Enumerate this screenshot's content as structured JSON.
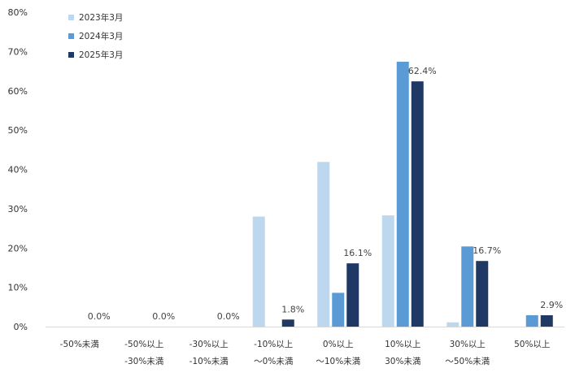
{
  "chart_data": {
    "type": "bar",
    "categories": [
      [
        "-50%未満",
        ""
      ],
      [
        "-50%以上",
        "-30%未満"
      ],
      [
        "-30%以上",
        "-10%未満"
      ],
      [
        "-10%以上",
        "～0%未満"
      ],
      [
        "0%以上",
        "～10%未満"
      ],
      [
        "10%以上",
        "30%未満"
      ],
      [
        "30%以上",
        "～50%未満"
      ],
      [
        "50%以上",
        ""
      ]
    ],
    "series": [
      {
        "name": "2023年3月",
        "color": "#bdd7ee",
        "values": [
          0,
          0,
          0,
          28.0,
          41.9,
          28.3,
          1.1,
          0
        ]
      },
      {
        "name": "2024年3月",
        "color": "#5b9bd5",
        "values": [
          0,
          0,
          0,
          0,
          8.6,
          67.4,
          20.4,
          2.9
        ]
      },
      {
        "name": "2025年3月",
        "color": "#1f3864",
        "values": [
          0,
          0,
          0,
          1.8,
          16.1,
          62.4,
          16.7,
          2.9
        ]
      }
    ],
    "data_labels": [
      {
        "category_index": 0,
        "series_index": 2,
        "text": "0.0%"
      },
      {
        "category_index": 1,
        "series_index": 2,
        "text": "0.0%"
      },
      {
        "category_index": 2,
        "series_index": 2,
        "text": "0.0%"
      },
      {
        "category_index": 3,
        "series_index": 2,
        "text": "1.8%"
      },
      {
        "category_index": 4,
        "series_index": 2,
        "text": "16.1%"
      },
      {
        "category_index": 5,
        "series_index": 2,
        "text": "62.4%"
      },
      {
        "category_index": 6,
        "series_index": 2,
        "text": "16.7%"
      },
      {
        "category_index": 7,
        "series_index": 2,
        "text": "2.9%"
      }
    ],
    "yticks": [
      "0%",
      "10%",
      "20%",
      "30%",
      "40%",
      "50%",
      "60%",
      "70%",
      "80%"
    ],
    "ylim": [
      0,
      80
    ],
    "grid": false,
    "legend_position": "top-left"
  }
}
